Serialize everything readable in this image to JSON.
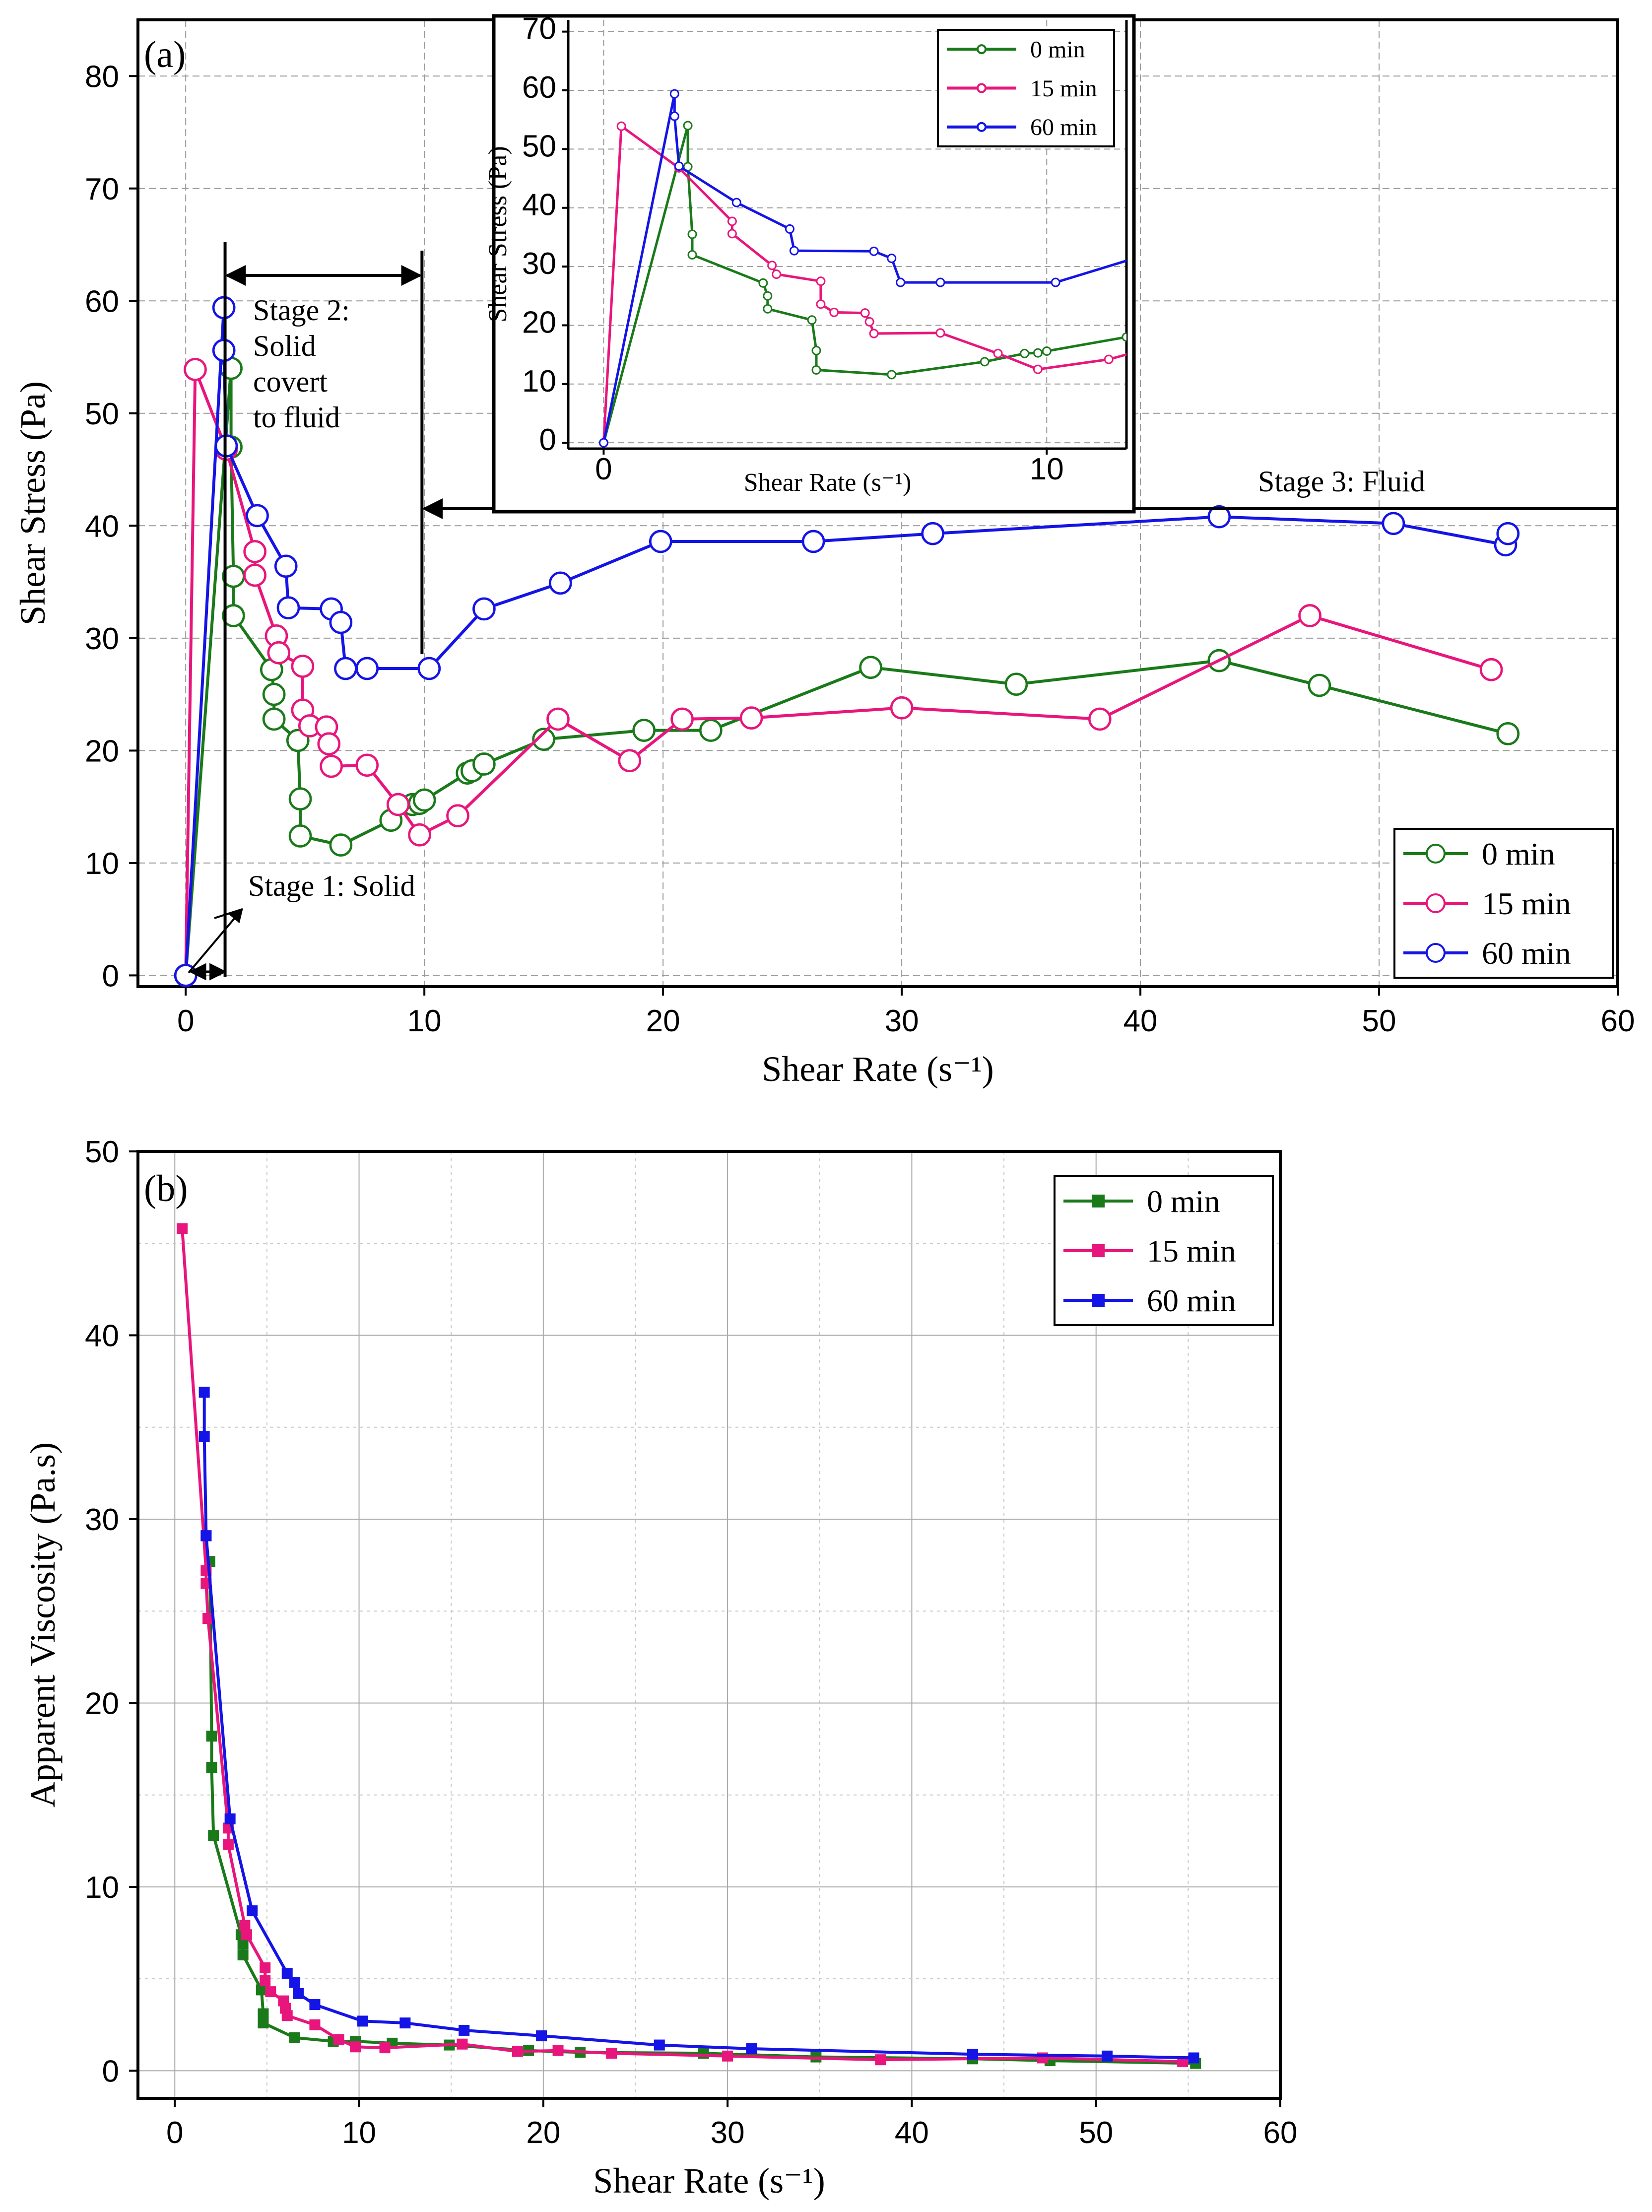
{
  "chart_data": [
    {
      "panel": "(a)",
      "type": "line",
      "xlabel": "Shear Rate (s⁻¹)",
      "ylabel": "Shear Stress (Pa)",
      "xlim": [
        -2,
        60
      ],
      "ylim": [
        -1,
        85
      ],
      "xticks": [
        0,
        10,
        20,
        30,
        40,
        50,
        60
      ],
      "yticks": [
        0,
        10,
        20,
        30,
        40,
        50,
        60,
        70,
        80
      ],
      "grid": true,
      "legend_position": "bottom-right",
      "colors": {
        "0 min": "#1a7a1a",
        "15 min": "#e8167c",
        "60 min": "#1414e6"
      },
      "series": [
        {
          "name": "0 min",
          "x": [
            0,
            1.9,
            1.9,
            2,
            2,
            3.6,
            3.7,
            3.7,
            4.7,
            4.8,
            4.8,
            6.5,
            8.6,
            9.5,
            9.8,
            10.0,
            11.8,
            12,
            12.5,
            15,
            19.2,
            22,
            28.7,
            34.8,
            43.3,
            47.5,
            55.4
          ],
          "y": [
            0,
            54,
            47,
            35.5,
            32,
            27.2,
            25,
            22.8,
            20.9,
            15.7,
            12.4,
            11.6,
            13.8,
            15.2,
            15.3,
            15.6,
            18.0,
            18.2,
            18.8,
            21,
            21.8,
            21.8,
            27.4,
            25.9,
            28,
            25.8,
            21.5
          ]
        },
        {
          "name": "15 min",
          "x": [
            0,
            0.4,
            1.7,
            2.9,
            2.9,
            3.8,
            3.9,
            4.9,
            4.9,
            5.2,
            5.9,
            6.0,
            6.1,
            7.6,
            8.9,
            9.8,
            11.4,
            15.6,
            18.6,
            20.8,
            23.7,
            30,
            38.3,
            47.1,
            54.7
          ],
          "y": [
            0,
            53.9,
            46.8,
            37.7,
            35.6,
            30.2,
            28.7,
            27.5,
            23.6,
            22.2,
            22.1,
            20.6,
            18.6,
            18.7,
            15.2,
            12.5,
            14.2,
            22.8,
            19.1,
            22.8,
            22.9,
            23.8,
            22.8,
            32.0,
            27.2
          ]
        },
        {
          "name": "60 min",
          "x": [
            0,
            1.6,
            1.6,
            1.7,
            3.0,
            4.2,
            4.3,
            6.1,
            6.5,
            6.7,
            7.6,
            10.2,
            12.5,
            15.7,
            19.9,
            26.3,
            31.3,
            43.3,
            50.6,
            55.3,
            55.4
          ],
          "y": [
            0,
            59.4,
            55.6,
            47.1,
            40.9,
            36.4,
            32.7,
            32.6,
            31.4,
            27.3,
            27.3,
            27.3,
            32.6,
            34.9,
            38.6,
            38.6,
            39.3,
            40.8,
            40.2,
            38.3,
            39.3
          ]
        }
      ],
      "annotations": [
        {
          "text": "Stage 1: Solid"
        },
        {
          "text": [
            "Stage 2:",
            "Solid",
            "covert",
            "to fluid"
          ]
        },
        {
          "text": "Stage 3: Fluid"
        }
      ],
      "inset": {
        "type": "line",
        "xlabel": "Shear Rate (s⁻¹)",
        "ylabel": "Shear Stress (Pa)",
        "xlim": [
          -0.8,
          11.8
        ],
        "ylim": [
          -1,
          72
        ],
        "yticks": [
          0,
          10,
          20,
          30,
          40,
          50,
          60,
          70
        ],
        "xticks": [
          0,
          10
        ],
        "legend_position": "top-right",
        "series_names": [
          "0 min",
          "15 min",
          "60 min"
        ]
      }
    },
    {
      "panel": "(b)",
      "type": "line",
      "xlabel": "Shear Rate (s⁻¹)",
      "ylabel": "Apparent Viscosity (Pa.s)",
      "xlim": [
        -2,
        60
      ],
      "ylim": [
        -1.5,
        50
      ],
      "xticks": [
        0,
        10,
        20,
        30,
        40,
        50,
        60
      ],
      "yticks": [
        0,
        10,
        20,
        30,
        40,
        50
      ],
      "grid": true,
      "legend_position": "top-right",
      "series": [
        {
          "name": "0 min",
          "x": [
            1.9,
            2.0,
            2.0,
            2.1,
            3.6,
            3.7,
            3.7,
            4.7,
            4.8,
            4.8,
            6.5,
            8.6,
            9.8,
            11.8,
            14.9,
            19.2,
            22.0,
            28.7,
            34.8,
            43.3,
            47.5,
            55.4
          ],
          "y": [
            27.7,
            18.2,
            16.5,
            12.8,
            7.4,
            6.9,
            6.3,
            4.4,
            3.1,
            2.6,
            1.8,
            1.6,
            1.6,
            1.5,
            1.4,
            1.1,
            1.0,
            0.95,
            0.75,
            0.65,
            0.55,
            0.4
          ]
        },
        {
          "name": "15 min",
          "x": [
            0.4,
            1.7,
            1.7,
            1.8,
            2.9,
            2.9,
            3.8,
            3.9,
            4.9,
            4.9,
            5.2,
            5.9,
            6.0,
            6.1,
            7.6,
            8.9,
            9.8,
            11.4,
            15.6,
            18.6,
            20.8,
            23.7,
            30.0,
            38.3,
            47.1,
            54.7
          ],
          "y": [
            45.8,
            27.2,
            26.5,
            24.6,
            13.2,
            12.3,
            7.9,
            7.4,
            5.6,
            4.9,
            4.3,
            3.8,
            3.4,
            3.0,
            2.5,
            1.7,
            1.3,
            1.25,
            1.45,
            1.05,
            1.1,
            0.95,
            0.8,
            0.6,
            0.7,
            0.5
          ]
        },
        {
          "name": "60 min",
          "x": [
            1.6,
            1.6,
            1.7,
            1.7,
            3.0,
            4.2,
            6.1,
            6.5,
            6.7,
            7.6,
            10.2,
            12.5,
            15.7,
            19.9,
            26.3,
            31.3,
            43.3,
            50.6,
            55.3
          ],
          "y": [
            36.9,
            34.5,
            29.1,
            29.1,
            13.7,
            8.7,
            5.3,
            4.8,
            4.2,
            3.6,
            2.7,
            2.6,
            2.2,
            1.9,
            1.4,
            1.2,
            0.9,
            0.8,
            0.7
          ]
        }
      ]
    }
  ]
}
